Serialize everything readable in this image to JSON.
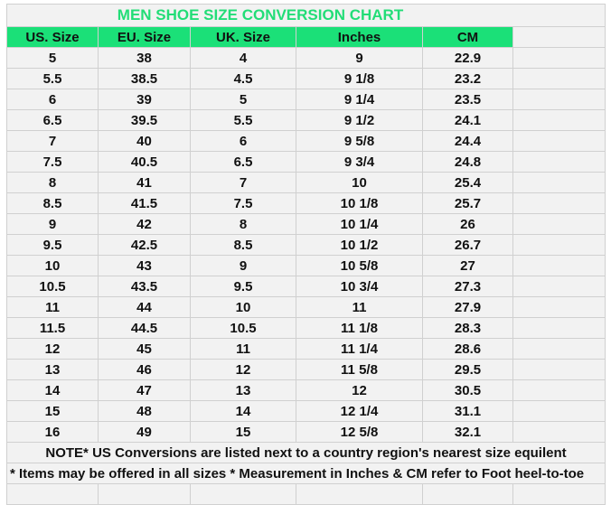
{
  "title": "MEN SHOE SIZE CONVERSION CHART",
  "headers": [
    "US. Size",
    "EU. Size",
    "UK. Size",
    "Inches",
    "CM"
  ],
  "rows": [
    [
      "5",
      "38",
      "4",
      "9",
      "22.9"
    ],
    [
      "5.5",
      "38.5",
      "4.5",
      "9 1/8",
      "23.2"
    ],
    [
      "6",
      "39",
      "5",
      "9 1/4",
      "23.5"
    ],
    [
      "6.5",
      "39.5",
      "5.5",
      "9 1/2",
      "24.1"
    ],
    [
      "7",
      "40",
      "6",
      "9 5/8",
      "24.4"
    ],
    [
      "7.5",
      "40.5",
      "6.5",
      "9 3/4",
      "24.8"
    ],
    [
      "8",
      "41",
      "7",
      "10",
      "25.4"
    ],
    [
      "8.5",
      "41.5",
      "7.5",
      "10 1/8",
      "25.7"
    ],
    [
      "9",
      "42",
      "8",
      "10 1/4",
      "26"
    ],
    [
      "9.5",
      "42.5",
      "8.5",
      "10 1/2",
      "26.7"
    ],
    [
      "10",
      "43",
      "9",
      "10 5/8",
      "27"
    ],
    [
      "10.5",
      "43.5",
      "9.5",
      "10 3/4",
      "27.3"
    ],
    [
      "11",
      "44",
      "10",
      "11",
      "27.9"
    ],
    [
      "11.5",
      "44.5",
      "10.5",
      "11 1/8",
      "28.3"
    ],
    [
      "12",
      "45",
      "11",
      "11 1/4",
      "28.6"
    ],
    [
      "13",
      "46",
      "12",
      "11 5/8",
      "29.5"
    ],
    [
      "14",
      "47",
      "13",
      "12",
      "30.5"
    ],
    [
      "15",
      "48",
      "14",
      "12 1/4",
      "31.1"
    ],
    [
      "16",
      "49",
      "15",
      "12 5/8",
      "32.1"
    ]
  ],
  "note1": "NOTE* US Conversions are listed next to a country region's nearest size equilent",
  "note2": "* Items may be offered in all sizes * Measurement in Inches & CM refer to Foot heel-to-toe",
  "colors": {
    "title": "#22dd77",
    "header_bg": "#1be078",
    "cell_bg": "#f2f2f2"
  }
}
